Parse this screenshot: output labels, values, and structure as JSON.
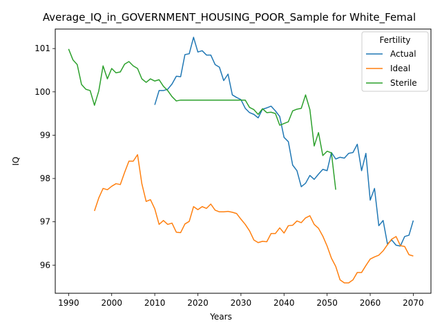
{
  "chart_data": {
    "type": "line",
    "title": "Average_IQ_in_GOVERNMENT_HOUSING_POOR_Sample for White_Femal",
    "xlabel": "Years",
    "ylabel": "IQ",
    "xlim": [
      1986.9,
      2074.1
    ],
    "ylim": [
      95.35,
      101.45
    ],
    "x_ticks": [
      1990,
      2000,
      2010,
      2020,
      2030,
      2040,
      2050,
      2060,
      2070
    ],
    "y_ticks": [
      96,
      97,
      98,
      99,
      100,
      101
    ],
    "grid": false,
    "legend": {
      "title": "Fertility",
      "placement": "upper right"
    },
    "series": [
      {
        "name": "Actual",
        "color": "#1f77b4",
        "x": [
          2010,
          2011,
          2012,
          2013,
          2014,
          2015,
          2016,
          2017,
          2018,
          2019,
          2020,
          2021,
          2022,
          2023,
          2024,
          2025,
          2026,
          2027,
          2028,
          2029,
          2030,
          2031,
          2032,
          2033,
          2034,
          2035,
          2036,
          2037,
          2038,
          2039,
          2040,
          2041,
          2042,
          2043,
          2044,
          2045,
          2046,
          2047,
          2048,
          2049,
          2050,
          2051,
          2052,
          2053,
          2054,
          2055,
          2056,
          2057,
          2058,
          2059,
          2060,
          2061,
          2062,
          2063,
          2064,
          2065,
          2066,
          2067,
          2068,
          2069,
          2070
        ],
        "y": [
          99.7,
          100.03,
          100.03,
          100.06,
          100.18,
          100.36,
          100.35,
          100.86,
          100.88,
          101.26,
          100.92,
          100.95,
          100.85,
          100.85,
          100.63,
          100.57,
          100.26,
          100.41,
          99.93,
          99.87,
          99.82,
          99.62,
          99.52,
          99.48,
          99.4,
          99.6,
          99.63,
          99.67,
          99.56,
          99.43,
          98.95,
          98.85,
          98.31,
          98.18,
          97.81,
          97.89,
          98.07,
          97.98,
          98.1,
          98.21,
          98.18,
          98.6,
          98.45,
          98.49,
          98.47,
          98.58,
          98.6,
          98.79,
          98.18,
          98.58,
          97.5,
          97.77,
          96.91,
          97.03,
          96.49,
          96.58,
          96.46,
          96.44,
          96.66,
          96.69,
          97.03
        ]
      },
      {
        "name": "Ideal",
        "color": "#ff7f0e",
        "x": [
          1996,
          1997,
          1998,
          1999,
          2000,
          2001,
          2002,
          2003,
          2004,
          2005,
          2006,
          2007,
          2008,
          2009,
          2010,
          2011,
          2012,
          2013,
          2014,
          2015,
          2016,
          2017,
          2018,
          2019,
          2020,
          2021,
          2022,
          2023,
          2024,
          2025,
          2026,
          2027,
          2028,
          2029,
          2030,
          2031,
          2032,
          2033,
          2034,
          2035,
          2036,
          2037,
          2038,
          2039,
          2040,
          2041,
          2042,
          2043,
          2044,
          2045,
          2046,
          2047,
          2048,
          2049,
          2050,
          2051,
          2052,
          2053,
          2054,
          2055,
          2056,
          2057,
          2058,
          2059,
          2060,
          2061,
          2062,
          2063,
          2064,
          2065,
          2066,
          2067,
          2068,
          2069,
          2070
        ],
        "y": [
          97.25,
          97.55,
          97.77,
          97.74,
          97.82,
          97.88,
          97.86,
          98.14,
          98.4,
          98.4,
          98.55,
          97.88,
          97.47,
          97.51,
          97.3,
          96.94,
          97.03,
          96.94,
          96.97,
          96.76,
          96.75,
          96.95,
          97.01,
          97.35,
          97.28,
          97.35,
          97.31,
          97.41,
          97.27,
          97.23,
          97.23,
          97.24,
          97.22,
          97.19,
          97.06,
          96.94,
          96.79,
          96.58,
          96.52,
          96.55,
          96.54,
          96.73,
          96.73,
          96.86,
          96.74,
          96.91,
          96.92,
          97.02,
          96.98,
          97.09,
          97.14,
          96.94,
          96.85,
          96.67,
          96.44,
          96.16,
          95.97,
          95.66,
          95.59,
          95.59,
          95.66,
          95.83,
          95.83,
          95.99,
          96.14,
          96.19,
          96.23,
          96.33,
          96.47,
          96.6,
          96.66,
          96.45,
          96.43,
          96.24,
          96.21
        ]
      },
      {
        "name": "Sterile",
        "color": "#2ca02c",
        "x": [
          1990,
          1991,
          1992,
          1993,
          1994,
          1995,
          1996,
          1997,
          1998,
          1999,
          2000,
          2001,
          2002,
          2003,
          2004,
          2005,
          2006,
          2007,
          2008,
          2009,
          2010,
          2011,
          2012,
          2013,
          2014,
          2015,
          2016,
          2017,
          2018,
          2019,
          2020,
          2021,
          2022,
          2023,
          2024,
          2025,
          2026,
          2027,
          2028,
          2029,
          2030,
          2031,
          2032,
          2033,
          2034,
          2035,
          2036,
          2037,
          2038,
          2039,
          2040,
          2041,
          2042,
          2043,
          2044,
          2045,
          2046,
          2047,
          2048,
          2049,
          2050,
          2051,
          2052
        ],
        "y": [
          100.99,
          100.74,
          100.63,
          100.17,
          100.06,
          100.03,
          99.69,
          100.02,
          100.6,
          100.3,
          100.54,
          100.44,
          100.46,
          100.64,
          100.7,
          100.6,
          100.54,
          100.3,
          100.22,
          100.3,
          100.25,
          100.28,
          100.13,
          100.03,
          99.89,
          99.79,
          99.81,
          99.81,
          99.81,
          99.81,
          99.81,
          99.81,
          99.81,
          99.81,
          99.81,
          99.81,
          99.81,
          99.81,
          99.81,
          99.81,
          99.81,
          99.81,
          99.64,
          99.59,
          99.48,
          99.61,
          99.52,
          99.53,
          99.5,
          99.23,
          99.27,
          99.31,
          99.56,
          99.6,
          99.62,
          99.93,
          99.59,
          98.75,
          99.06,
          98.53,
          98.63,
          98.59,
          97.74
        ]
      }
    ]
  }
}
